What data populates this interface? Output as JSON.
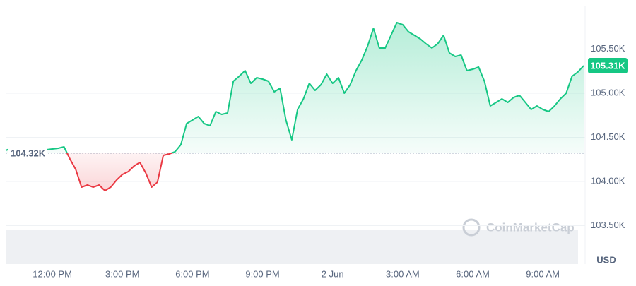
{
  "chart_data": {
    "type": "line",
    "categories": [
      null,
      null,
      null,
      null,
      null,
      null,
      null,
      null,
      "12:00 PM",
      null,
      null,
      null,
      null,
      null,
      null,
      null,
      null,
      null,
      null,
      null,
      "3:00 PM",
      null,
      null,
      null,
      null,
      null,
      null,
      null,
      null,
      null,
      null,
      null,
      "6:00 PM",
      null,
      null,
      null,
      null,
      null,
      null,
      null,
      null,
      null,
      null,
      null,
      "9:00 PM",
      null,
      null,
      null,
      null,
      null,
      null,
      null,
      null,
      null,
      null,
      null,
      "2 Jun",
      null,
      null,
      null,
      null,
      null,
      null,
      null,
      null,
      null,
      null,
      null,
      "3:00 AM",
      null,
      null,
      null,
      null,
      null,
      null,
      null,
      null,
      null,
      null,
      null,
      "6:00 AM",
      null,
      null,
      null,
      null,
      null,
      null,
      null,
      null,
      null,
      null,
      null,
      "9:00 AM",
      null,
      null,
      null,
      null,
      null,
      null,
      null
    ],
    "values": [
      104352,
      104376,
      104336,
      104328,
      104344,
      104352,
      104352,
      104360,
      104368,
      104376,
      104392,
      104256,
      104136,
      103936,
      103960,
      103936,
      103960,
      103896,
      103936,
      104016,
      104080,
      104112,
      104176,
      104216,
      104096,
      103936,
      103992,
      104296,
      104312,
      104336,
      104416,
      104656,
      104696,
      104736,
      104656,
      104632,
      104792,
      104760,
      104776,
      105136,
      105192,
      105256,
      105112,
      105176,
      105160,
      105136,
      105016,
      105056,
      104696,
      104472,
      104816,
      104936,
      105112,
      105032,
      105096,
      105216,
      105112,
      105176,
      105000,
      105096,
      105256,
      105376,
      105536,
      105736,
      105512,
      105512,
      105656,
      105800,
      105776,
      105696,
      105656,
      105616,
      105560,
      105512,
      105560,
      105656,
      105456,
      105416,
      105432,
      105256,
      105272,
      105296,
      105136,
      104856,
      104896,
      104936,
      104896,
      104952,
      104976,
      104896,
      104816,
      104856,
      104816,
      104792,
      104856,
      104936,
      105000,
      105192,
      105240,
      105312
    ],
    "ylim": [
      103056,
      105992
    ],
    "yticks": [
      {
        "value": 103500,
        "label": "103.50K"
      },
      {
        "value": 104000,
        "label": "104.00K"
      },
      {
        "value": 104500,
        "label": "104.50K"
      },
      {
        "value": 105000,
        "label": "105.00K"
      },
      {
        "value": 105500,
        "label": "105.50K"
      }
    ],
    "y_unit": "USD",
    "baseline": {
      "value": 104320,
      "label": "104.32K"
    },
    "current_price": {
      "value": 105312,
      "label": "105.31K"
    },
    "up_color": "#16c784",
    "down_color": "#ea3943",
    "grid": true,
    "watermark": "CoinMarketCap"
  }
}
